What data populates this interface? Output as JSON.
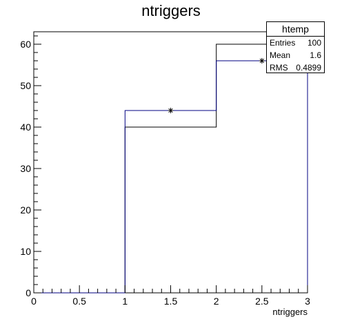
{
  "chart_data": {
    "type": "histogram",
    "title": "ntriggers",
    "xlabel": "ntriggers",
    "ylabel": "",
    "xlim": [
      0,
      3
    ],
    "ylim": [
      0,
      63
    ],
    "x_ticks": [
      0,
      0.5,
      1,
      1.5,
      2,
      2.5,
      3
    ],
    "x_tick_labels": [
      "0",
      "0.5",
      "1",
      "1.5",
      "2",
      "2.5",
      "3"
    ],
    "y_ticks": [
      0,
      10,
      20,
      30,
      40,
      50,
      60
    ],
    "y_tick_labels": [
      "0",
      "10",
      "20",
      "30",
      "40",
      "50",
      "60"
    ],
    "grid": false,
    "series": [
      {
        "bins": [
          [
            0,
            1
          ],
          [
            1,
            2
          ],
          [
            2,
            3
          ]
        ],
        "values": [
          0,
          40,
          60
        ],
        "color": "#000000"
      },
      {
        "bins": [
          [
            0,
            1
          ],
          [
            1,
            2
          ],
          [
            2,
            3
          ]
        ],
        "values": [
          0,
          44,
          56
        ],
        "color": "#000080",
        "markers": [
          {
            "x": 1.5,
            "y": 44
          },
          {
            "x": 2.5,
            "y": 56
          }
        ]
      }
    ],
    "stats_box": {
      "title": "htemp",
      "rows": [
        {
          "label": "Entries",
          "value": "100"
        },
        {
          "label": "Mean",
          "value": "1.6"
        },
        {
          "label": "RMS",
          "value": "0.4899"
        }
      ],
      "placement": "top-right"
    }
  }
}
